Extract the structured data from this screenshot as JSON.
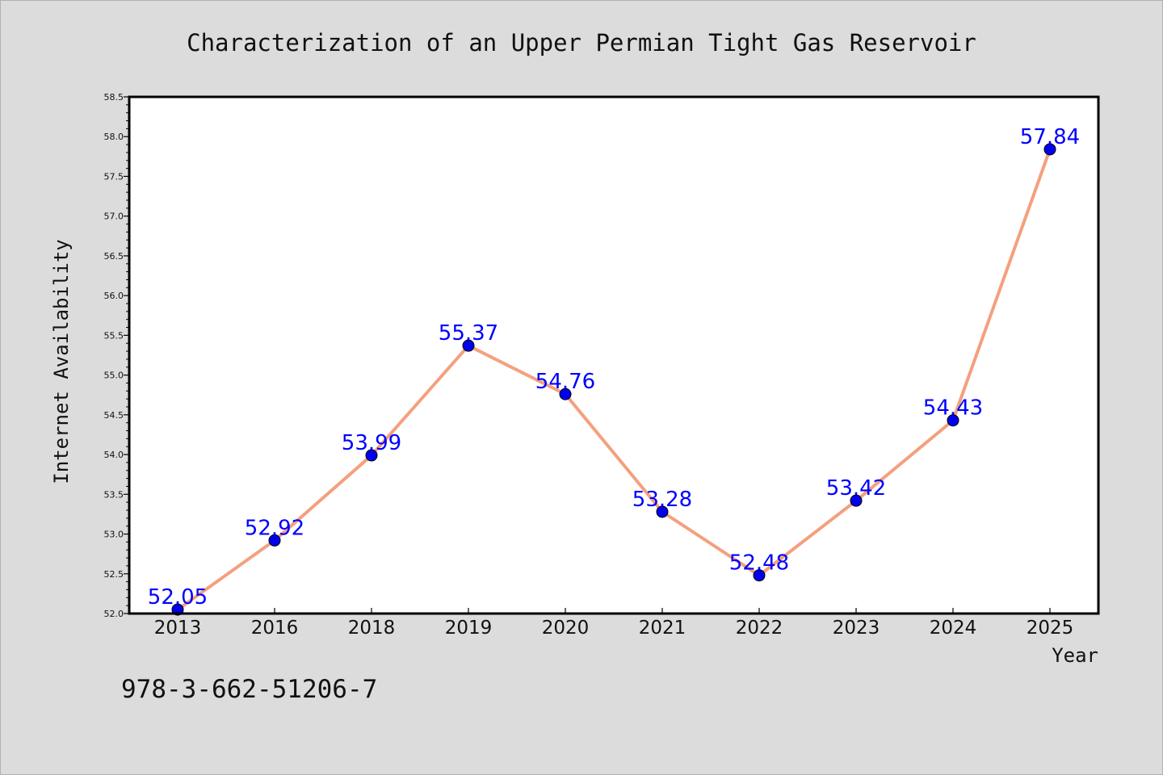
{
  "chart_data": {
    "type": "line",
    "title": "Characterization of an Upper Permian Tight Gas Reservoir",
    "xlabel": "Year",
    "ylabel": "Internet Availability",
    "categories": [
      "2013",
      "2016",
      "2018",
      "2019",
      "2020",
      "2021",
      "2022",
      "2023",
      "2024",
      "2025"
    ],
    "series": [
      {
        "values": [
          52.05,
          52.92,
          53.99,
          55.37,
          54.76,
          53.28,
          52.48,
          53.42,
          54.43,
          57.84
        ]
      }
    ],
    "data_labels": [
      "52.05",
      "52.92",
      "53.99",
      "55.37",
      "54.76",
      "53.28",
      "52.48",
      "53.42",
      "54.43",
      "57.84"
    ],
    "ylim": [
      52.0,
      58.5
    ],
    "yticks": [
      "52.0",
      "52.5",
      "53.0",
      "53.5",
      "54.0",
      "54.5",
      "55.0",
      "55.5",
      "56.0",
      "56.5",
      "57.0",
      "57.5",
      "58.0",
      "58.5"
    ],
    "grid": false,
    "legend": "none",
    "colors": {
      "line": "#f4a07e",
      "marker": "#0000ee",
      "label": "#0000ff",
      "background": "#dcdcdc",
      "plot_background": "#ffffff"
    }
  },
  "footer": {
    "isbn": "978-3-662-51206-7"
  }
}
